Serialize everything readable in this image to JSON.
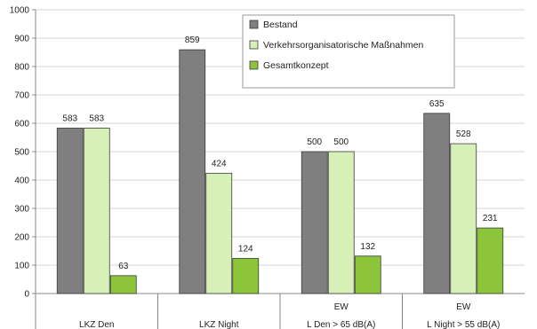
{
  "chart_data": {
    "type": "bar",
    "categories": [
      "LKZ Den",
      "LKZ Night",
      "L Den > 65 dB(A)",
      "L Night > 55 dB(A)"
    ],
    "category_prefixes": [
      "",
      "",
      "EW",
      "EW"
    ],
    "series": [
      {
        "name": "Bestand",
        "values": [
          583,
          859,
          500,
          635
        ],
        "color": "#7f7f7f"
      },
      {
        "name": "Verkehrsorganisatorische Maßnahmen",
        "values": [
          583,
          424,
          500,
          528
        ],
        "color": "#d7f0b8"
      },
      {
        "name": "Gesamtkonzept",
        "values": [
          63,
          124,
          132,
          231
        ],
        "color": "#8cc43a"
      }
    ],
    "yticks": [
      "0",
      "100",
      "200",
      "300",
      "400",
      "500",
      "600",
      "700",
      "800",
      "900",
      "1000"
    ],
    "ylim": [
      0,
      1000
    ],
    "grid": true,
    "legend_position": "top-center",
    "title": "",
    "xlabel": "",
    "ylabel": ""
  }
}
